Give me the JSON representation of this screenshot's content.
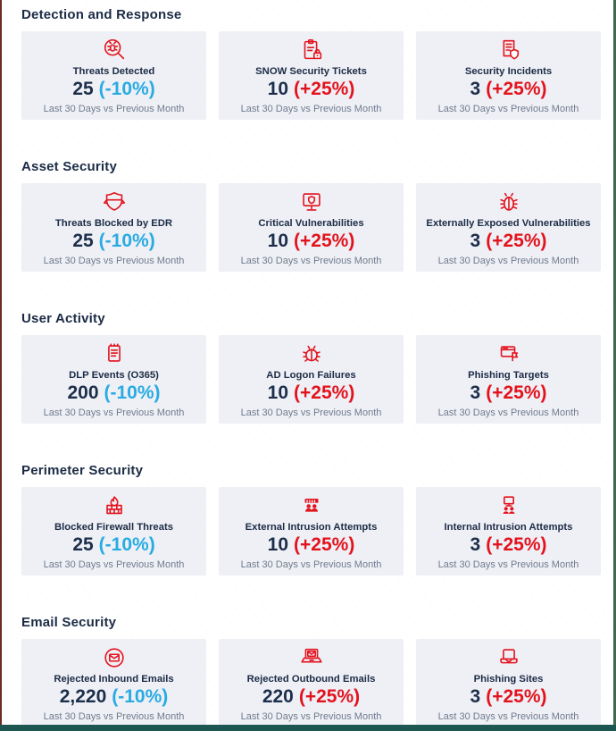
{
  "page": {
    "edge_colors": {
      "left": "#6e2a23",
      "right": "#40684c",
      "bottom": "#1e5751"
    }
  },
  "colors": {
    "icon_red": "#e3131d",
    "value_navy": "#1c2e4a",
    "change_positive_red": "#e3131d",
    "change_negative_blue": "#29abe2",
    "card_background": "#eef0f6",
    "title_navy": "#1c2b45",
    "subtitle_gray": "#717b8c"
  },
  "subtitle": "Last 30 Days vs Previous Month",
  "sections": [
    {
      "title": "Detection and Response",
      "cards": [
        {
          "icon": "bug-magnifier-icon",
          "title": "Threats Detected",
          "value": "25",
          "change": "(-10%)",
          "trend": "down"
        },
        {
          "icon": "clipboard-lock-icon",
          "title": "SNOW Security Tickets",
          "value": "10",
          "change": "(+25%)",
          "trend": "up"
        },
        {
          "icon": "document-shield-icon",
          "title": "Security Incidents",
          "value": "3",
          "change": "(+25%)",
          "trend": "up"
        }
      ]
    },
    {
      "title": "Asset Security",
      "cards": [
        {
          "icon": "shield-banner-icon",
          "title": "Threats Blocked by EDR",
          "value": "25",
          "change": "(-10%)",
          "trend": "down"
        },
        {
          "icon": "monitor-shield-icon",
          "title": "Critical Vulnerabilities",
          "value": "10",
          "change": "(+25%)",
          "trend": "up"
        },
        {
          "icon": "bug-icon",
          "title": "Externally Exposed Vulnerabilities",
          "value": "3",
          "change": "(+25%)",
          "trend": "up"
        }
      ]
    },
    {
      "title": "User Activity",
      "cards": [
        {
          "icon": "notepad-icon",
          "title": "DLP Events (O365)",
          "value": "200",
          "change": "(-10%)",
          "trend": "down"
        },
        {
          "icon": "ladybug-icon",
          "title": "AD Logon Failures",
          "value": "10",
          "change": "(+25%)",
          "trend": "up"
        },
        {
          "icon": "window-flag-icon",
          "title": "Phishing Targets",
          "value": "3",
          "change": "(+25%)",
          "trend": "up"
        }
      ]
    },
    {
      "title": "Perimeter Security",
      "cards": [
        {
          "icon": "firewall-flame-icon",
          "title": "Blocked Firewall Threats",
          "value": "25",
          "change": "(-10%)",
          "trend": "down"
        },
        {
          "icon": "intruders-icon",
          "title": "External Intrusion Attempts",
          "value": "10",
          "change": "(+25%)",
          "trend": "up"
        },
        {
          "icon": "monitor-users-icon",
          "title": "Internal Intrusion Attempts",
          "value": "3",
          "change": "(+25%)",
          "trend": "up"
        }
      ]
    },
    {
      "title": "Email Security",
      "cards": [
        {
          "icon": "envelope-circle-icon",
          "title": "Rejected Inbound Emails",
          "value": "2,220",
          "change": "(-10%)",
          "trend": "down"
        },
        {
          "icon": "laptop-mail-icon",
          "title": "Rejected Outbound Emails",
          "value": "220",
          "change": "(+25%)",
          "trend": "up"
        },
        {
          "icon": "laptop-icon",
          "title": "Phishing Sites",
          "value": "3",
          "change": "(+25%)",
          "trend": "up"
        }
      ]
    }
  ]
}
